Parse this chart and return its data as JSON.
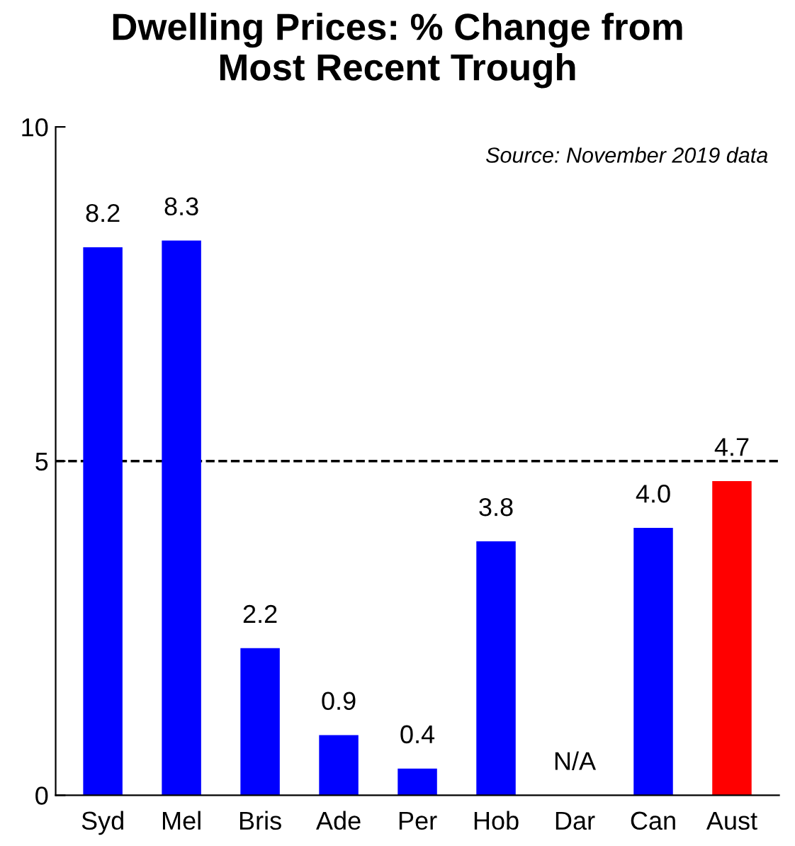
{
  "chart_data": {
    "type": "bar",
    "title": "Dwelling Prices: % Change from\nMost Recent Trough",
    "categories": [
      "Syd",
      "Mel",
      "Bris",
      "Ade",
      "Per",
      "Hob",
      "Dar",
      "Can",
      "Aust"
    ],
    "values": [
      8.2,
      8.3,
      2.2,
      0.9,
      0.4,
      3.8,
      null,
      4.0,
      4.7
    ],
    "colors": [
      "#0000ff",
      "#0000ff",
      "#0000ff",
      "#0000ff",
      "#0000ff",
      "#0000ff",
      "#0000ff",
      "#0000ff",
      "#ff0000"
    ],
    "value_labels": [
      "8.2",
      "8.3",
      "2.2",
      "0.9",
      "0.4",
      "3.8",
      "N/A",
      "4.0",
      "4.7"
    ],
    "ylim": [
      0,
      10
    ],
    "yticks": [
      0,
      5,
      10
    ],
    "ref_lines": [
      {
        "axis": "y",
        "value": 5,
        "label": null,
        "color": "#000000",
        "line_style": "dashed"
      }
    ],
    "annotations": [
      "Source: November 2019 data"
    ],
    "grid": false,
    "legend": false
  }
}
